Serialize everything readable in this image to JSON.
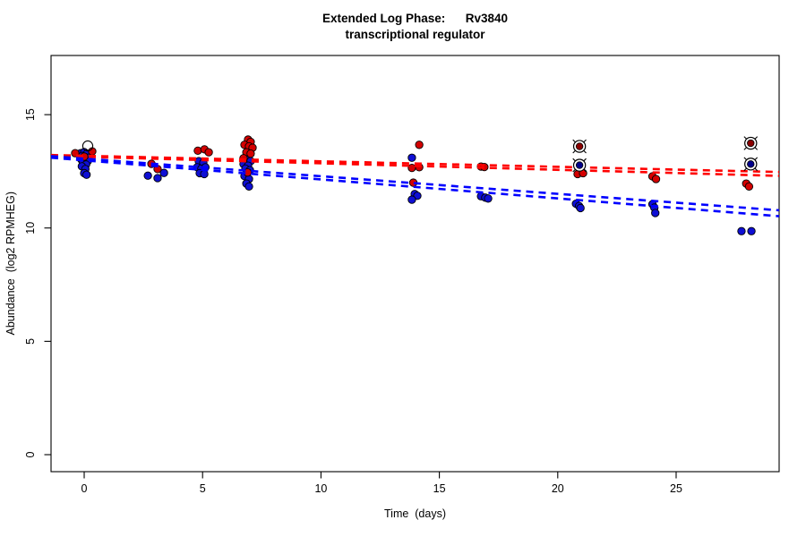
{
  "chart_data": {
    "type": "scatter",
    "title_line1": "Extended Log Phase:      Rv3840",
    "title_line2": "transcriptional regulator",
    "xlabel": "Time  (days)",
    "ylabel": "Abundance  (log2 RPMHEG)",
    "xlim": [
      -1.4,
      29.35
    ],
    "ylim": [
      -0.75,
      17.61
    ],
    "x_ticks": [
      0,
      5,
      10,
      15,
      20,
      25
    ],
    "y_ticks": [
      0,
      5,
      10,
      15
    ],
    "grid": false,
    "legend": "none",
    "colors": {
      "red_point_fill": "#d40000",
      "blue_point_fill": "#0f0fd4",
      "point_outline": "#000000",
      "red_line": "#ff0000",
      "blue_line": "#0000ff",
      "circled_red_center": "#8b0000",
      "circled_blue_center": "#00008b",
      "marker_outline": "#000000",
      "axis": "#000000"
    },
    "series": [
      {
        "name": "red-condition",
        "points": [
          [
            -0.38,
            13.3
          ],
          [
            0.34,
            13.38
          ],
          [
            0.0,
            13.15
          ],
          [
            2.84,
            12.83
          ],
          [
            3.1,
            12.6
          ],
          [
            4.8,
            13.41
          ],
          [
            5.08,
            13.47
          ],
          [
            5.26,
            13.34
          ],
          [
            6.92,
            13.9
          ],
          [
            7.03,
            13.8
          ],
          [
            6.77,
            13.67
          ],
          [
            6.96,
            13.6
          ],
          [
            7.11,
            13.54
          ],
          [
            6.85,
            13.34
          ],
          [
            7.03,
            13.28
          ],
          [
            6.73,
            13.08
          ],
          [
            6.9,
            12.45
          ],
          [
            14.15,
            13.67
          ],
          [
            13.84,
            12.65
          ],
          [
            14.15,
            12.68
          ],
          [
            13.9,
            12.0
          ],
          [
            16.76,
            12.71
          ],
          [
            16.9,
            12.69
          ],
          [
            20.84,
            12.38
          ],
          [
            21.07,
            12.42
          ],
          [
            24.0,
            12.28
          ],
          [
            24.15,
            12.16
          ],
          [
            27.96,
            11.96
          ],
          [
            28.08,
            11.83
          ]
        ]
      },
      {
        "name": "blue-condition",
        "points": [
          [
            -0.15,
            13.3
          ],
          [
            0.0,
            13.35
          ],
          [
            0.12,
            13.28
          ],
          [
            -0.08,
            13.18
          ],
          [
            0.05,
            13.12
          ],
          [
            0.18,
            13.1
          ],
          [
            -0.12,
            13.02
          ],
          [
            0.02,
            12.98
          ],
          [
            0.15,
            12.95
          ],
          [
            -0.05,
            12.88
          ],
          [
            0.08,
            12.8
          ],
          [
            -0.1,
            12.72
          ],
          [
            0.05,
            12.6
          ],
          [
            0.0,
            12.42
          ],
          [
            0.1,
            12.35
          ],
          [
            2.69,
            12.31
          ],
          [
            3.1,
            12.2
          ],
          [
            3.37,
            12.43
          ],
          [
            4.84,
            12.95
          ],
          [
            5.03,
            12.88
          ],
          [
            4.77,
            12.68
          ],
          [
            4.95,
            12.62
          ],
          [
            5.12,
            12.68
          ],
          [
            4.88,
            12.42
          ],
          [
            5.07,
            12.38
          ],
          [
            6.85,
            13.02
          ],
          [
            7.03,
            12.95
          ],
          [
            6.73,
            12.82
          ],
          [
            6.92,
            12.75
          ],
          [
            6.81,
            12.62
          ],
          [
            7.0,
            12.55
          ],
          [
            6.77,
            12.29
          ],
          [
            6.96,
            12.16
          ],
          [
            6.85,
            11.96
          ],
          [
            6.96,
            11.83
          ],
          [
            13.84,
            13.1
          ],
          [
            13.96,
            11.5
          ],
          [
            14.07,
            11.42
          ],
          [
            13.84,
            11.25
          ],
          [
            16.76,
            11.4
          ],
          [
            16.94,
            11.34
          ],
          [
            17.06,
            11.3
          ],
          [
            20.77,
            11.07
          ],
          [
            20.9,
            10.97
          ],
          [
            20.96,
            10.88
          ],
          [
            24.0,
            11.05
          ],
          [
            24.08,
            10.9
          ],
          [
            24.12,
            10.66
          ],
          [
            27.76,
            9.86
          ],
          [
            28.18,
            9.86
          ]
        ]
      }
    ],
    "trend_lines": [
      {
        "color": "red",
        "x1": -1.4,
        "v1": 13.22,
        "x2": 29.35,
        "v2": 12.47
      },
      {
        "color": "red",
        "x1": -1.4,
        "v1": 13.18,
        "x2": 29.35,
        "v2": 12.3
      },
      {
        "color": "blue",
        "x1": -1.4,
        "v1": 13.17,
        "x2": 29.35,
        "v2": 10.78
      },
      {
        "color": "blue",
        "x1": -1.4,
        "v1": 13.1,
        "x2": 29.35,
        "v2": 10.52
      }
    ],
    "circled_points": [
      {
        "x": 20.92,
        "v": 13.6,
        "center": "red"
      },
      {
        "x": 20.92,
        "v": 12.77,
        "center": "blue"
      },
      {
        "x": 28.15,
        "v": 13.74,
        "center": "red"
      },
      {
        "x": 28.15,
        "v": 12.82,
        "center": "blue"
      }
    ],
    "open_circle_points": [
      {
        "x": 0.15,
        "v": 13.62
      }
    ]
  }
}
